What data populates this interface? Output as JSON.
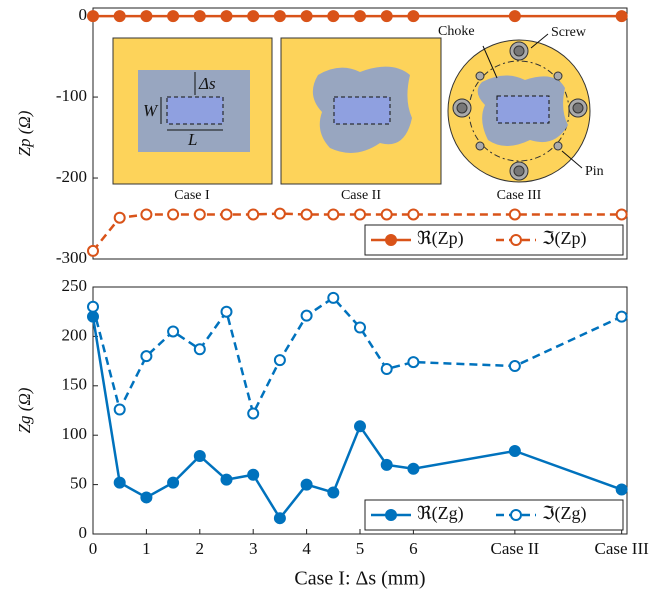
{
  "chart_data": [
    {
      "type": "line",
      "y_label": "Zp (Ω)",
      "xlim": [
        0,
        10
      ],
      "ylim": [
        -300,
        10
      ],
      "yticks": [
        -300,
        -200,
        -100,
        0
      ],
      "x": [
        0,
        0.5,
        1,
        1.5,
        2,
        2.5,
        3,
        3.5,
        4,
        4.5,
        5,
        5.5,
        6,
        7.9,
        9.9
      ],
      "series": [
        {
          "name": "ℜ(Zp)",
          "color": "#d95319",
          "line_style": "solid",
          "filled": true,
          "values": [
            0,
            0,
            0,
            0,
            0,
            0,
            0,
            0,
            0,
            0,
            0,
            0,
            0,
            0,
            0
          ]
        },
        {
          "name": "ℑ(Zp)",
          "color": "#d95319",
          "line_style": "dashed",
          "filled": false,
          "values": [
            -290,
            -249,
            -245,
            -245,
            -245,
            -245,
            -245,
            -244,
            -245,
            -245,
            -245,
            -245,
            -245,
            -245,
            -245
          ]
        }
      ],
      "legend": "lower right",
      "annotations": [
        "Case I",
        "Case II",
        "Case III",
        "Choke",
        "Screw",
        "Pin",
        "Δs",
        "W",
        "L"
      ]
    },
    {
      "type": "line",
      "y_label": "Zg (Ω)",
      "x_label": "Case I: Δs (mm)",
      "xlim": [
        0,
        10
      ],
      "ylim": [
        0,
        250
      ],
      "yticks": [
        0,
        50,
        100,
        150,
        200,
        250
      ],
      "xticks": [
        0,
        1,
        2,
        3,
        4,
        5,
        6,
        {
          "value": 7.9,
          "label": "Case II"
        },
        {
          "value": 9.9,
          "label": "Case III"
        }
      ],
      "x": [
        0,
        0.5,
        1,
        1.5,
        2,
        2.5,
        3,
        3.5,
        4,
        4.5,
        5,
        5.5,
        6,
        7.9,
        9.9
      ],
      "series": [
        {
          "name": "ℜ(Zg)",
          "color": "#0072bd",
          "line_style": "solid",
          "filled": true,
          "values": [
            220,
            52,
            37,
            52,
            79,
            55,
            60,
            16,
            50,
            42,
            109,
            70,
            66,
            84,
            45
          ]
        },
        {
          "name": "ℑ(Zg)",
          "color": "#0072bd",
          "line_style": "dashed",
          "filled": false,
          "values": [
            230,
            126,
            180,
            205,
            187,
            225,
            122,
            176,
            221,
            239,
            209,
            167,
            174,
            170,
            220
          ]
        }
      ],
      "legend": "lower right"
    }
  ]
}
